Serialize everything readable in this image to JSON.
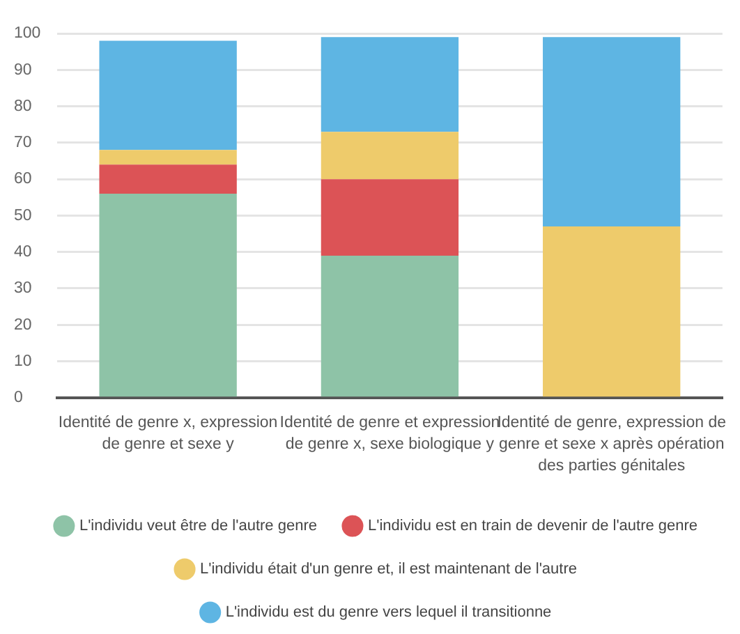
{
  "chart_data": {
    "type": "bar",
    "stacked": true,
    "categories": [
      "Identité de genre x, expression de genre et sexe y",
      "Identité de genre et expression de genre x, sexe biologique y",
      "Identité de genre, expression de genre et sexe x après opération des parties génitales"
    ],
    "series": [
      {
        "name": "L'individu veut être de l'autre genre",
        "color": "#8ec3a7",
        "values": [
          56,
          39,
          0
        ]
      },
      {
        "name": "L'individu est en train de devenir de l'autre genre",
        "color": "#dc5356",
        "values": [
          8,
          21,
          0
        ]
      },
      {
        "name": "L'individu était d'un genre et, il est maintenant de l'autre",
        "color": "#eecb6b",
        "values": [
          4,
          13,
          47
        ]
      },
      {
        "name": "L'individu est du genre vers lequel il transitionne",
        "color": "#5eb5e3",
        "values": [
          30,
          26,
          52
        ]
      }
    ],
    "ylim": [
      0,
      100
    ],
    "yticks": [
      0,
      10,
      20,
      30,
      40,
      50,
      60,
      70,
      80,
      90,
      100
    ],
    "grid": "y",
    "legend": "bottom"
  }
}
